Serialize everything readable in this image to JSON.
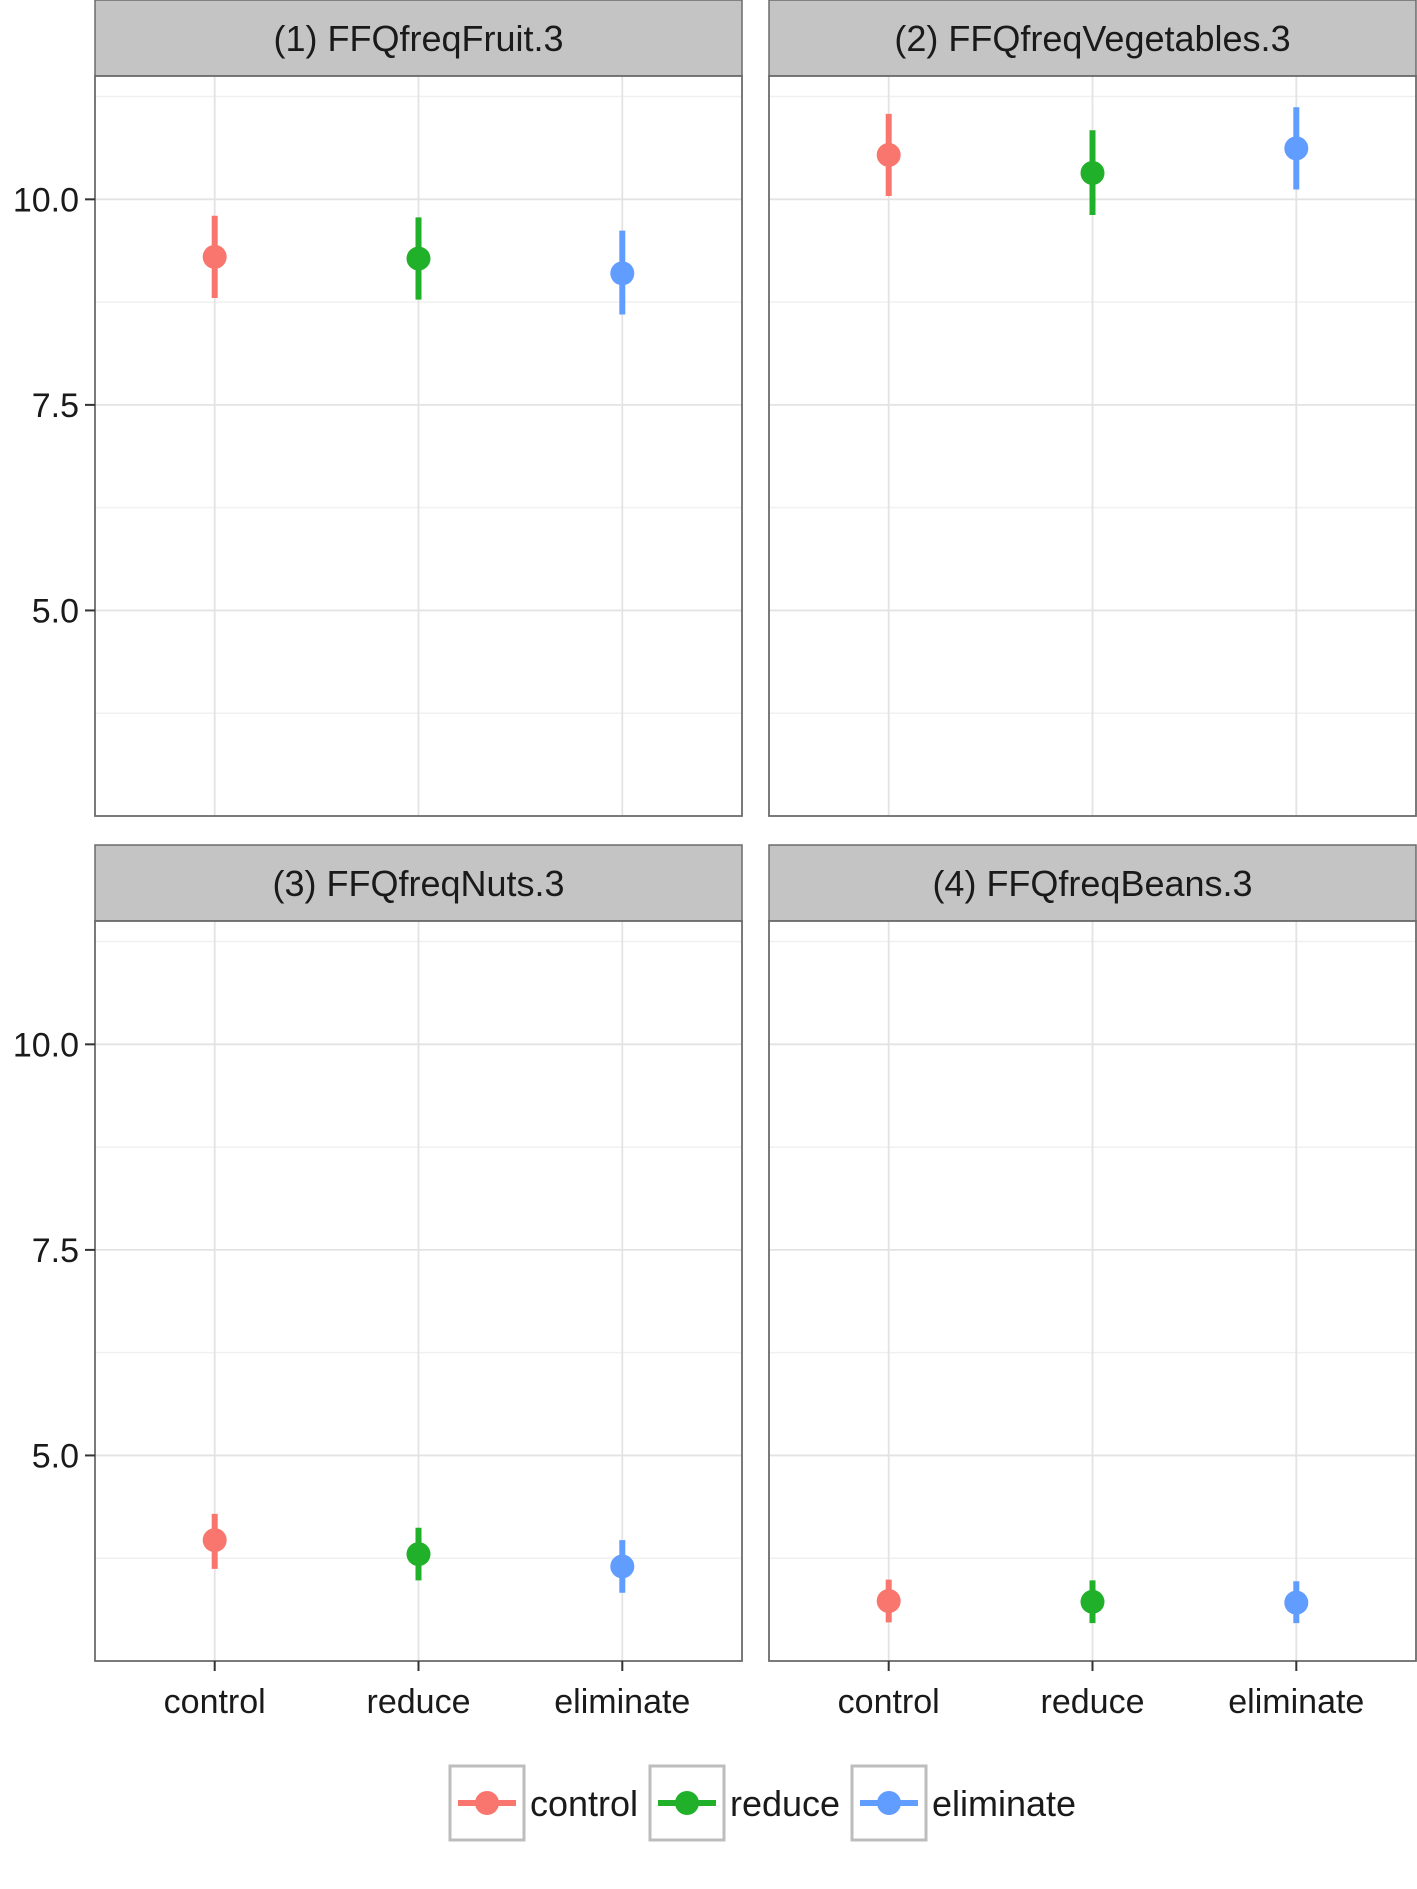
{
  "chart_data": {
    "type": "scatter",
    "subtype": "point-range facet grid",
    "categories": [
      "control",
      "reduce",
      "eliminate"
    ],
    "y_ticks": [
      "5.0",
      "7.5",
      "10.0"
    ],
    "ylim": [
      2.5,
      11.5
    ],
    "grid": true,
    "legend_position": "bottom",
    "colors": {
      "control": "#F8766D",
      "reduce": "#21B02A",
      "eliminate": "#619CFF"
    },
    "panels": [
      {
        "title": "(1) FFQfreqFruit.3",
        "series": [
          {
            "name": "control",
            "estimate": 9.3,
            "lower": 8.8,
            "upper": 9.8
          },
          {
            "name": "reduce",
            "estimate": 9.28,
            "lower": 8.78,
            "upper": 9.78
          },
          {
            "name": "eliminate",
            "estimate": 9.1,
            "lower": 8.6,
            "upper": 9.62
          }
        ]
      },
      {
        "title": "(2) FFQfreqVegetables.3",
        "series": [
          {
            "name": "control",
            "estimate": 10.54,
            "lower": 10.04,
            "upper": 11.04
          },
          {
            "name": "reduce",
            "estimate": 10.32,
            "lower": 9.81,
            "upper": 10.84
          },
          {
            "name": "eliminate",
            "estimate": 10.62,
            "lower": 10.12,
            "upper": 11.12
          }
        ]
      },
      {
        "title": "(3) FFQfreqNuts.3",
        "series": [
          {
            "name": "control",
            "estimate": 3.97,
            "lower": 3.62,
            "upper": 4.29
          },
          {
            "name": "reduce",
            "estimate": 3.8,
            "lower": 3.48,
            "upper": 4.12
          },
          {
            "name": "eliminate",
            "estimate": 3.65,
            "lower": 3.33,
            "upper": 3.97
          }
        ]
      },
      {
        "title": "(4) FFQfreqBeans.3",
        "series": [
          {
            "name": "control",
            "estimate": 3.23,
            "lower": 2.97,
            "upper": 3.49
          },
          {
            "name": "reduce",
            "estimate": 3.22,
            "lower": 2.96,
            "upper": 3.48
          },
          {
            "name": "eliminate",
            "estimate": 3.21,
            "lower": 2.96,
            "upper": 3.47
          }
        ]
      }
    ],
    "legend": [
      "control",
      "reduce",
      "eliminate"
    ]
  }
}
